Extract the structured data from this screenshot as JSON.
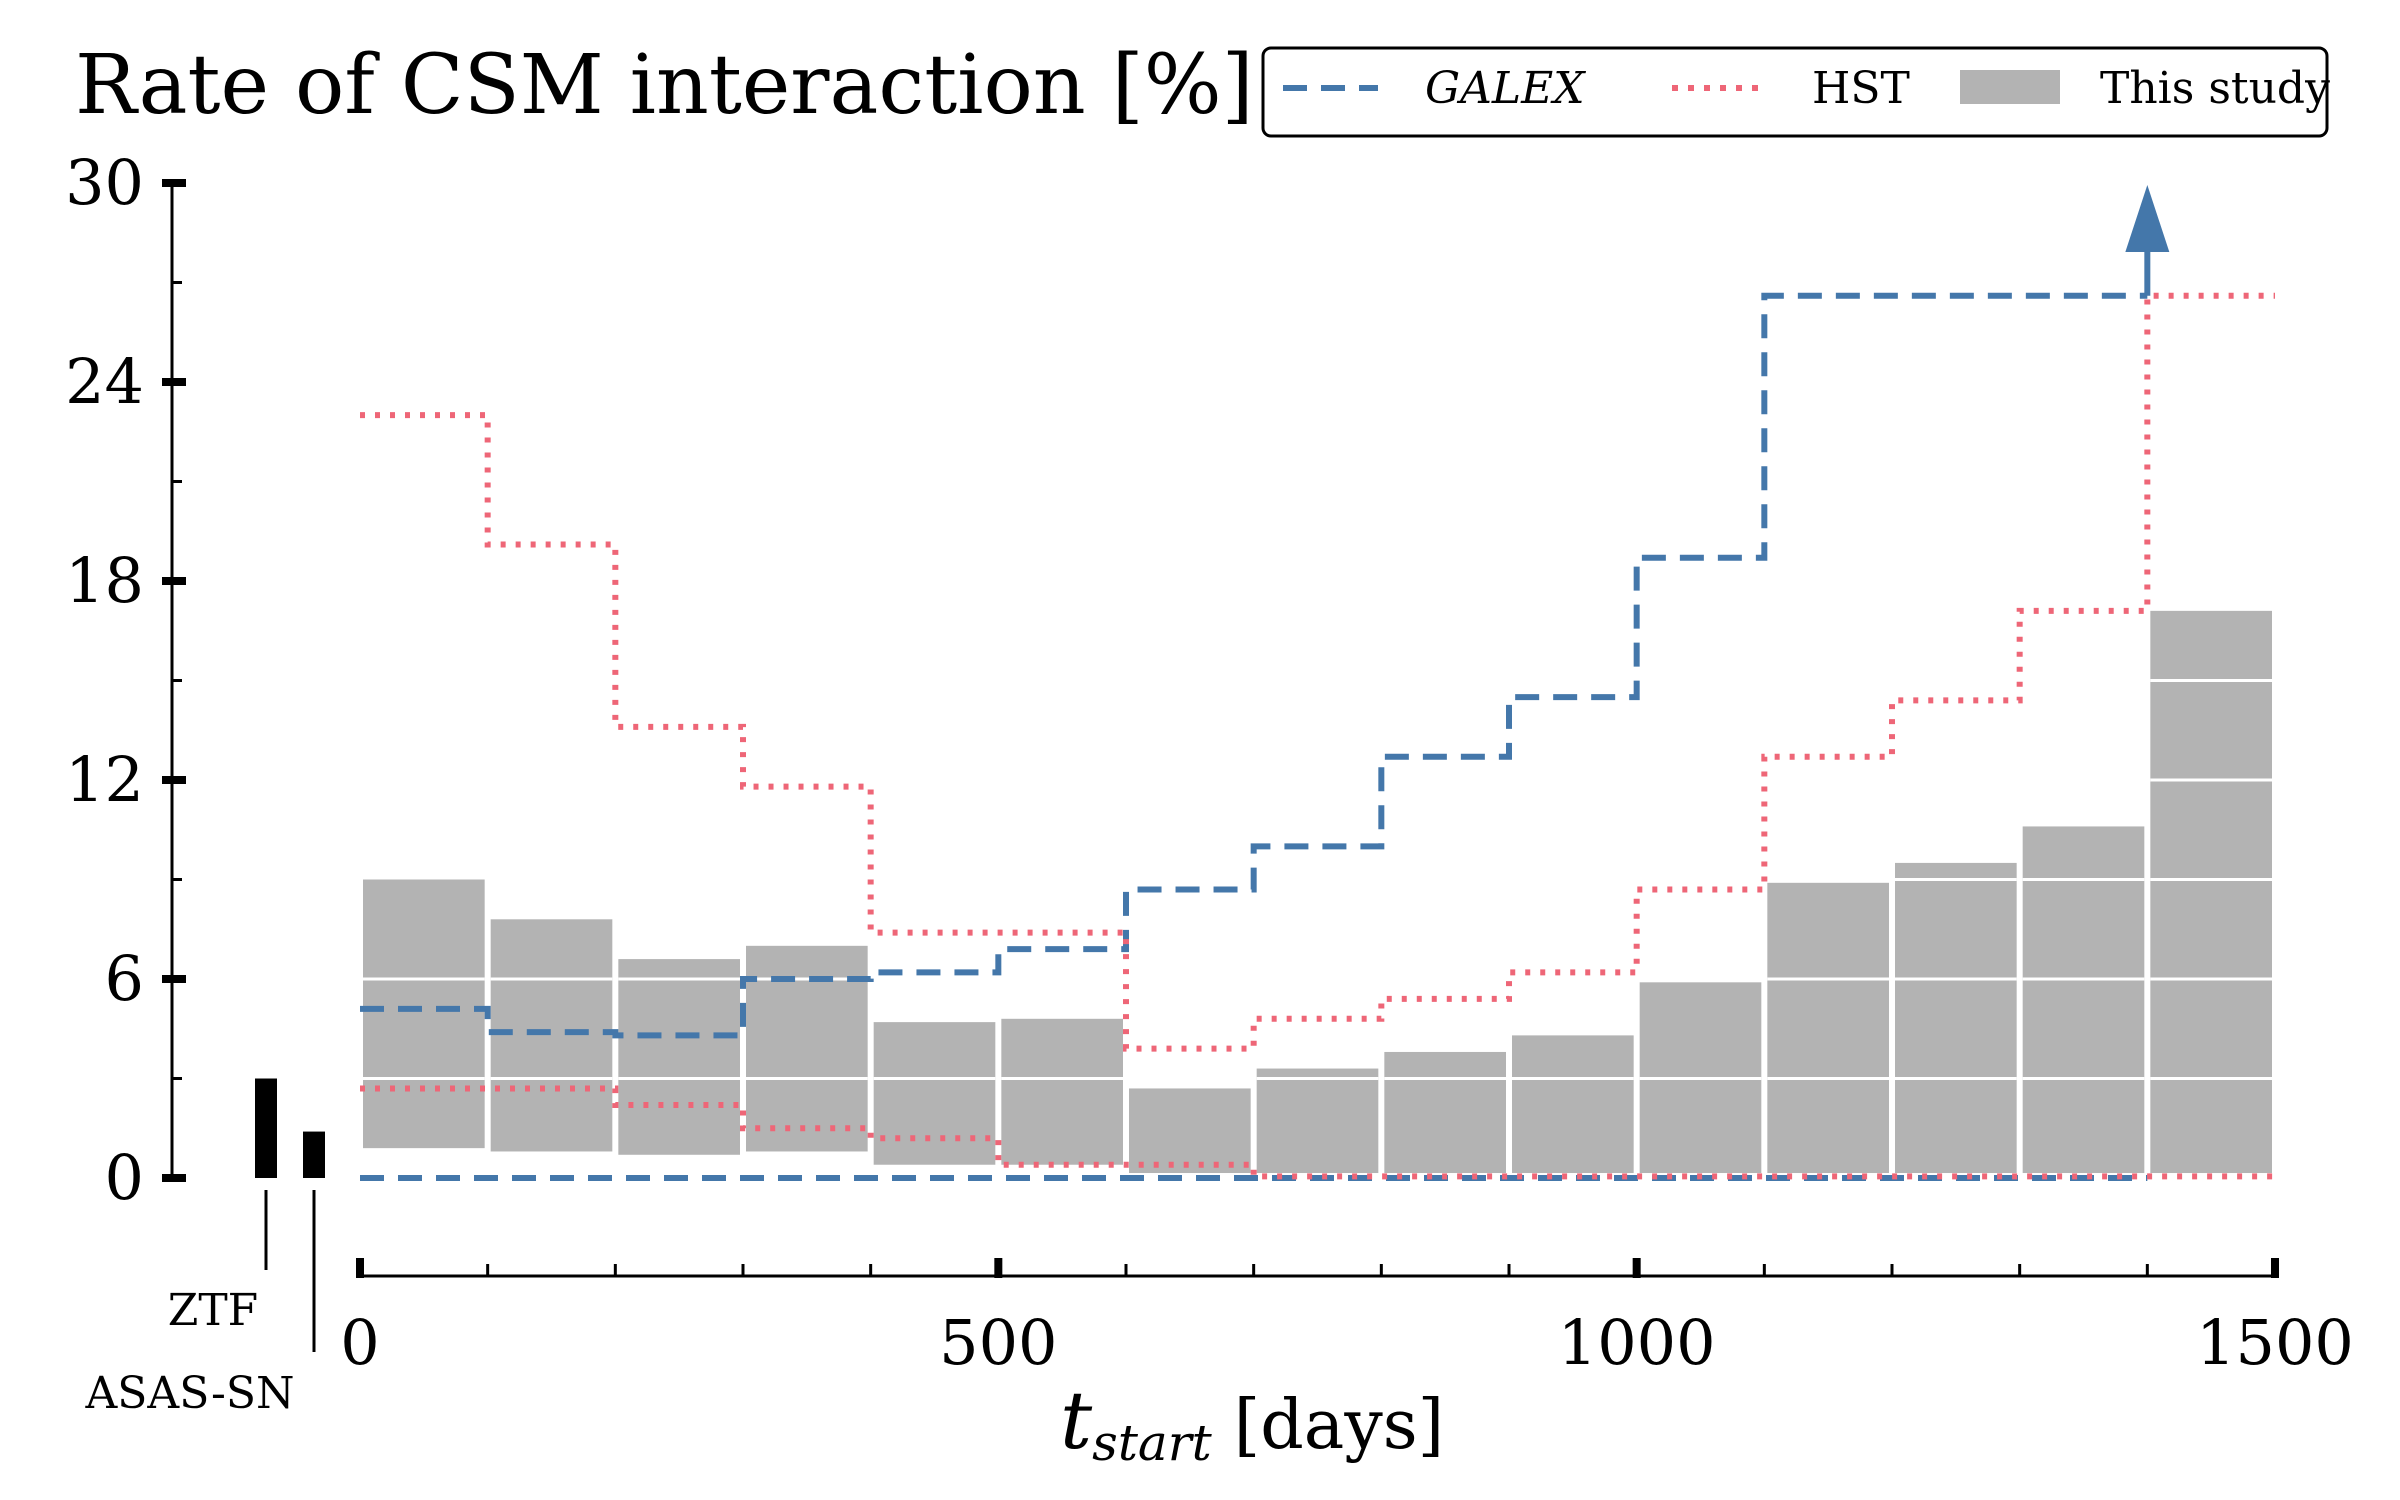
{
  "colors": {
    "galex": "#4477aa",
    "hst": "#ee6677",
    "bars": "#b3b3b3",
    "axis": "#000000"
  },
  "chart_data": {
    "type": "bar",
    "title": "Rate of CSM interaction [%]",
    "xlabel_main": "t",
    "xlabel_sub": "start",
    "xlabel_unit": "[days]",
    "xlim": [
      0,
      1500
    ],
    "ylim": [
      0,
      30
    ],
    "xticks": [
      "0",
      "500",
      "1000",
      "1500"
    ],
    "yticks": [
      "0",
      "6",
      "12",
      "18",
      "24",
      "30"
    ],
    "grid": false,
    "legend_position": "top-right",
    "legend": {
      "galex": "GALEX",
      "hst": "HST",
      "bars": "This study"
    },
    "bins": [
      0,
      100,
      200,
      300,
      400,
      500,
      600,
      700,
      800,
      900,
      1000,
      1100,
      1200,
      1300,
      1400,
      1500
    ],
    "this_study_high": [
      9.0,
      7.8,
      6.6,
      7.0,
      4.7,
      4.8,
      2.7,
      3.3,
      3.8,
      4.3,
      5.9,
      8.9,
      9.5,
      10.6,
      17.1
    ],
    "this_study_low": [
      0.9,
      0.8,
      0.7,
      0.8,
      0.4,
      0.4,
      0.15,
      0.15,
      0.15,
      0.15,
      0.15,
      0.15,
      0.15,
      0.15,
      0.15
    ],
    "galex_upper": [
      5.1,
      4.4,
      4.3,
      6.0,
      6.2,
      6.9,
      8.7,
      10.0,
      12.7,
      14.5,
      18.7,
      26.6,
      26.6,
      26.6
    ],
    "galex_lower": [
      0,
      0,
      0,
      0,
      0,
      0,
      0,
      0,
      0,
      0,
      0,
      0,
      0,
      0
    ],
    "galex_arrow_x": 1400,
    "hst_upper": [
      23.0,
      19.1,
      13.6,
      11.8,
      7.4,
      7.4,
      3.9,
      4.8,
      5.4,
      6.2,
      8.7,
      12.7,
      14.4,
      17.1,
      26.6
    ],
    "hst_lower": [
      2.7,
      2.7,
      2.2,
      1.5,
      1.2,
      0.4,
      0.4,
      0.05,
      0.05,
      0.05,
      0.05,
      0.05,
      0.05,
      0.05,
      0.05
    ],
    "surveys": [
      {
        "name": "ZTF",
        "value": 3.0
      },
      {
        "name": "ASAS-SN",
        "value": 1.4
      }
    ]
  }
}
